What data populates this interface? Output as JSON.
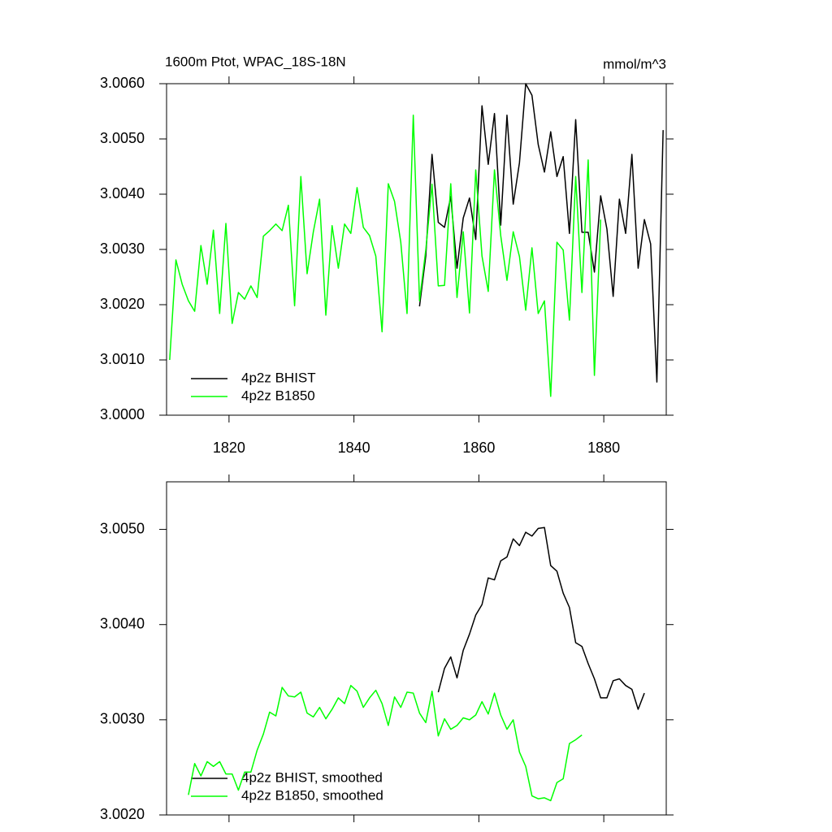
{
  "chart_data": [
    {
      "type": "line",
      "title": "1600m Ptot, WPAC_18S-18N",
      "units": "mmol/m^3",
      "xlim": [
        1810,
        1890
      ],
      "xticks": [
        1820,
        1840,
        1860,
        1880
      ],
      "ylim": [
        3.0,
        3.006
      ],
      "yticks": [
        {
          "value": 3.0,
          "label": "3.0000"
        },
        {
          "value": 3.001,
          "label": "3.0010"
        },
        {
          "value": 3.002,
          "label": "3.0020"
        },
        {
          "value": 3.003,
          "label": "3.0030"
        },
        {
          "value": 3.004,
          "label": "3.0040"
        },
        {
          "value": 3.005,
          "label": "3.0050"
        },
        {
          "value": 3.006,
          "label": "3.0060"
        }
      ],
      "legend": "lower left",
      "series": [
        {
          "name": "4p2z BHIST",
          "color": "#000000",
          "x": [
            1850.5,
            1851.5,
            1852.5,
            1853.5,
            1854.5,
            1855.5,
            1856.5,
            1857.5,
            1858.5,
            1859.5,
            1860.5,
            1861.5,
            1862.5,
            1863.5,
            1864.5,
            1865.5,
            1866.5,
            1867.5,
            1868.5,
            1869.5,
            1870.5,
            1871.5,
            1872.5,
            1873.5,
            1874.5,
            1875.5,
            1876.5,
            1877.5,
            1878.5,
            1879.5,
            1880.5,
            1881.5,
            1882.5,
            1883.5,
            1884.5,
            1885.5,
            1886.5,
            1887.5,
            1888.5,
            1889.5
          ],
          "values": [
            3.00197,
            3.00288,
            3.00472,
            3.00349,
            3.0034,
            3.00396,
            3.00266,
            3.00357,
            3.00393,
            3.00318,
            3.0056,
            3.00454,
            3.00546,
            3.00344,
            3.00543,
            3.00382,
            3.00457,
            3.006,
            3.00579,
            3.0049,
            3.0044,
            3.00513,
            3.00432,
            3.00468,
            3.00329,
            3.00535,
            3.00331,
            3.00331,
            3.00259,
            3.00397,
            3.00337,
            3.00215,
            3.00391,
            3.00329,
            3.00472,
            3.00266,
            3.00354,
            3.0031,
            3.0006,
            3.00516
          ]
        },
        {
          "name": "4p2z B1850",
          "color": "#00ff00",
          "x": [
            1810.5,
            1811.5,
            1812.5,
            1813.5,
            1814.5,
            1815.5,
            1816.5,
            1817.5,
            1818.5,
            1819.5,
            1820.5,
            1821.5,
            1822.5,
            1823.5,
            1824.5,
            1825.5,
            1826.5,
            1827.5,
            1828.5,
            1829.5,
            1830.5,
            1831.5,
            1832.5,
            1833.5,
            1834.5,
            1835.5,
            1836.5,
            1837.5,
            1838.5,
            1839.5,
            1840.5,
            1841.5,
            1842.5,
            1843.5,
            1844.5,
            1845.5,
            1846.5,
            1847.5,
            1848.5,
            1849.5,
            1850.5,
            1851.5,
            1852.5,
            1853.5,
            1854.5,
            1855.5,
            1856.5,
            1857.5,
            1858.5,
            1859.5,
            1860.5,
            1861.5,
            1862.5,
            1863.5,
            1864.5,
            1865.5,
            1866.5,
            1867.5,
            1868.5,
            1869.5,
            1870.5,
            1871.5,
            1872.5,
            1873.5,
            1874.5,
            1875.5,
            1876.5,
            1877.5,
            1878.5,
            1879.5
          ],
          "values": [
            3.001,
            3.00281,
            3.00237,
            3.00207,
            3.00188,
            3.00307,
            3.00237,
            3.00335,
            3.00184,
            3.00347,
            3.00166,
            3.00222,
            3.0021,
            3.00234,
            3.00213,
            3.00324,
            3.00334,
            3.00346,
            3.00334,
            3.0038,
            3.00198,
            3.00432,
            3.00256,
            3.00332,
            3.00391,
            3.00181,
            3.00343,
            3.00266,
            3.00346,
            3.00329,
            3.00412,
            3.0034,
            3.00325,
            3.00288,
            3.00151,
            3.00419,
            3.00387,
            3.00313,
            3.00184,
            3.00543,
            3.00207,
            3.00299,
            3.00418,
            3.00234,
            3.00235,
            3.00419,
            3.00213,
            3.00332,
            3.00185,
            3.00444,
            3.00288,
            3.00224,
            3.00444,
            3.00325,
            3.00244,
            3.00332,
            3.00287,
            3.0019,
            3.00303,
            3.00184,
            3.00207,
            3.00034,
            3.00313,
            3.00299,
            3.00172,
            3.00432,
            3.00222,
            3.00462,
            3.00072,
            3.00354
          ]
        }
      ]
    },
    {
      "type": "line",
      "xlim": [
        1810,
        1890
      ],
      "xticks": [
        1820,
        1840,
        1860,
        1880
      ],
      "ylim": [
        3.002,
        3.0055
      ],
      "yticks": [
        {
          "value": 3.002,
          "label": "3.0020"
        },
        {
          "value": 3.003,
          "label": "3.0030"
        },
        {
          "value": 3.004,
          "label": "3.0040"
        },
        {
          "value": 3.005,
          "label": "3.0050"
        }
      ],
      "legend": "lower left",
      "series": [
        {
          "name": "4p2z BHIST, smoothed",
          "color": "#000000",
          "x": [
            1853.5,
            1854.5,
            1855.5,
            1856.5,
            1857.5,
            1858.5,
            1859.5,
            1860.5,
            1861.5,
            1862.5,
            1863.5,
            1864.5,
            1865.5,
            1866.5,
            1867.5,
            1868.5,
            1869.5,
            1870.5,
            1871.5,
            1872.5,
            1873.5,
            1874.5,
            1875.5,
            1876.5,
            1877.5,
            1878.5,
            1879.5,
            1880.5,
            1881.5,
            1882.5,
            1883.5,
            1884.5,
            1885.5,
            1886.5
          ],
          "values": [
            3.00329,
            3.00354,
            3.00366,
            3.00344,
            3.00373,
            3.0039,
            3.0041,
            3.00421,
            3.00449,
            3.00447,
            3.00467,
            3.00471,
            3.0049,
            3.00483,
            3.00497,
            3.00493,
            3.00501,
            3.00502,
            3.00462,
            3.00456,
            3.00433,
            3.00418,
            3.00381,
            3.00377,
            3.00359,
            3.00343,
            3.00323,
            3.00323,
            3.00341,
            3.00343,
            3.00336,
            3.00332,
            3.00311,
            3.00328
          ]
        },
        {
          "name": "4p2z B1850, smoothed",
          "color": "#00ff00",
          "x": [
            1813.5,
            1814.5,
            1815.5,
            1816.5,
            1817.5,
            1818.5,
            1819.5,
            1820.5,
            1821.5,
            1822.5,
            1823.5,
            1824.5,
            1825.5,
            1826.5,
            1827.5,
            1828.5,
            1829.5,
            1830.5,
            1831.5,
            1832.5,
            1833.5,
            1834.5,
            1835.5,
            1836.5,
            1837.5,
            1838.5,
            1839.5,
            1840.5,
            1841.5,
            1842.5,
            1843.5,
            1844.5,
            1845.5,
            1846.5,
            1847.5,
            1848.5,
            1849.5,
            1850.5,
            1851.5,
            1852.5,
            1853.5,
            1854.5,
            1855.5,
            1856.5,
            1857.5,
            1858.5,
            1859.5,
            1860.5,
            1861.5,
            1862.5,
            1863.5,
            1864.5,
            1865.5,
            1866.5,
            1867.5,
            1868.5,
            1869.5,
            1870.5,
            1871.5,
            1872.5,
            1873.5,
            1874.5,
            1875.5,
            1876.5
          ],
          "values": [
            3.00221,
            3.00254,
            3.00241,
            3.00256,
            3.00251,
            3.00256,
            3.00243,
            3.00243,
            3.00226,
            3.00245,
            3.00245,
            3.00268,
            3.00285,
            3.00308,
            3.00304,
            3.00334,
            3.00325,
            3.00324,
            3.00329,
            3.00307,
            3.00303,
            3.00313,
            3.00301,
            3.00311,
            3.00323,
            3.00317,
            3.00336,
            3.0033,
            3.00313,
            3.00323,
            3.00331,
            3.00317,
            3.00294,
            3.00324,
            3.00313,
            3.00329,
            3.00328,
            3.00307,
            3.00297,
            3.0033,
            3.00283,
            3.00301,
            3.0029,
            3.00294,
            3.00302,
            3.003,
            3.00305,
            3.00319,
            3.00306,
            3.00328,
            3.00305,
            3.0029,
            3.003,
            3.00266,
            3.00251,
            3.0022,
            3.00217,
            3.00218,
            3.00215,
            3.00234,
            3.00238,
            3.00275,
            3.00279,
            3.00284
          ]
        }
      ]
    }
  ]
}
